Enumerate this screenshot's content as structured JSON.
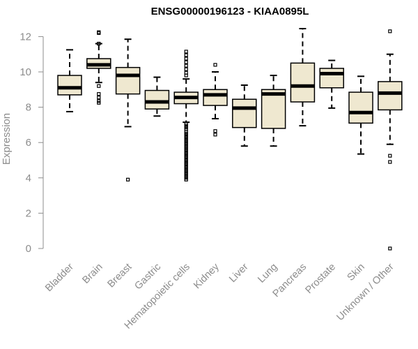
{
  "chart_data": {
    "type": "boxplot",
    "title": "ENSG00000196123 - KIAA0895L",
    "xlabel": "",
    "ylabel": "Expression",
    "ylim": [
      0,
      12.3
    ],
    "yticks": [
      0,
      2,
      4,
      6,
      8,
      10,
      12
    ],
    "colors": {
      "box_fill": "#efe8d0",
      "stroke": "#000000",
      "axis": "#8c8c8c",
      "median": "#000000"
    },
    "series": [
      {
        "name": "Bladder",
        "whisker_low": 7.75,
        "q1": 8.7,
        "median": 9.1,
        "q3": 9.8,
        "whisker_high": 11.25,
        "outliers": []
      },
      {
        "name": "Brain",
        "whisker_low": 9.4,
        "q1": 10.2,
        "median": 10.4,
        "q3": 10.75,
        "whisker_high": 11.6,
        "outliers": [
          12.25,
          12.2,
          11.6,
          9.2,
          8.75,
          8.55,
          8.35,
          8.25
        ]
      },
      {
        "name": "Breast",
        "whisker_low": 6.9,
        "q1": 8.75,
        "median": 9.8,
        "q3": 10.25,
        "whisker_high": 11.85,
        "outliers": [
          3.9
        ]
      },
      {
        "name": "Gastric",
        "whisker_low": 7.5,
        "q1": 7.9,
        "median": 8.3,
        "q3": 8.95,
        "whisker_high": 9.7,
        "outliers": []
      },
      {
        "name": "Hematopoietic cells",
        "whisker_low": 7.15,
        "q1": 8.2,
        "median": 8.55,
        "q3": 8.85,
        "whisker_high": 9.6,
        "outliers": [
          11.15,
          10.95,
          10.75,
          10.55,
          10.35,
          10.15,
          9.95,
          9.8,
          7.05,
          6.95,
          6.85,
          6.75,
          6.6,
          6.5,
          6.4,
          6.3,
          6.2,
          6.1,
          6.0,
          5.9,
          5.8,
          5.7,
          5.6,
          5.5,
          5.4,
          5.3,
          5.2,
          5.1,
          5.0,
          4.9,
          4.8,
          4.7,
          4.6,
          4.5,
          4.4,
          4.3,
          4.2,
          4.1,
          4.0,
          3.9
        ]
      },
      {
        "name": "Kidney",
        "whisker_low": 7.35,
        "q1": 8.1,
        "median": 8.7,
        "q3": 9.0,
        "whisker_high": 10.0,
        "outliers": [
          10.4,
          6.65,
          6.45
        ]
      },
      {
        "name": "Liver",
        "whisker_low": 5.8,
        "q1": 6.85,
        "median": 7.95,
        "q3": 8.45,
        "whisker_high": 9.25,
        "outliers": []
      },
      {
        "name": "Lung",
        "whisker_low": 5.8,
        "q1": 6.8,
        "median": 8.75,
        "q3": 9.0,
        "whisker_high": 9.8,
        "outliers": []
      },
      {
        "name": "Pancreas",
        "whisker_low": 6.95,
        "q1": 8.3,
        "median": 9.2,
        "q3": 10.5,
        "whisker_high": 12.45,
        "outliers": []
      },
      {
        "name": "Prostate",
        "whisker_low": 7.95,
        "q1": 9.1,
        "median": 9.9,
        "q3": 10.2,
        "whisker_high": 10.65,
        "outliers": []
      },
      {
        "name": "Skin",
        "whisker_low": 5.35,
        "q1": 7.1,
        "median": 7.7,
        "q3": 8.85,
        "whisker_high": 9.75,
        "outliers": []
      },
      {
        "name": "Unknown / Other",
        "whisker_low": 5.9,
        "q1": 7.85,
        "median": 8.8,
        "q3": 9.45,
        "whisker_high": 11.0,
        "outliers": [
          12.3,
          5.25,
          4.9,
          0.0
        ]
      }
    ]
  }
}
